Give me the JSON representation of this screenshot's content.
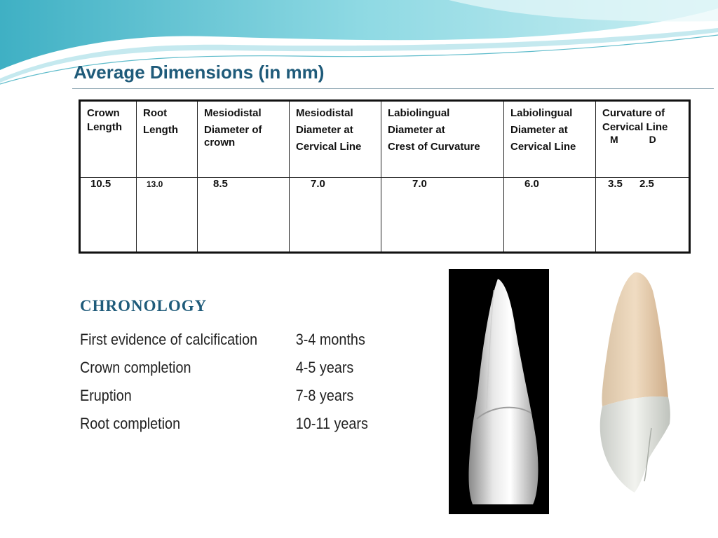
{
  "slide": {
    "title": "Average Dimensions (in mm)"
  },
  "table": {
    "headers": [
      {
        "lines": [
          "Crown",
          "Length"
        ]
      },
      {
        "lines": [
          "Root",
          "Length"
        ]
      },
      {
        "lines": [
          "Mesiodistal",
          "Diameter of",
          "crown"
        ]
      },
      {
        "lines": [
          "Mesiodistal",
          "Diameter at",
          "Cervical Line"
        ]
      },
      {
        "lines": [
          "Labiolingual",
          "Diameter at",
          "Crest of Curvature"
        ]
      },
      {
        "lines": [
          "Labiolingual",
          "Diameter at",
          "Cervical Line"
        ]
      },
      {
        "lines": [
          "Curvature of",
          "Cervical Line"
        ],
        "sub": [
          "M",
          "D"
        ]
      }
    ],
    "values": [
      "10.5",
      "13.0",
      "8.5",
      "7.0",
      "7.0",
      "6.0",
      "3.5",
      "2.5"
    ]
  },
  "chronology": {
    "title": "CHRONOLOGY",
    "rows": [
      {
        "label": "First evidence of calcification",
        "value": "3-4 months"
      },
      {
        "label": "Crown completion",
        "value": "4-5 years"
      },
      {
        "label": "Eruption",
        "value": "7-8 years"
      },
      {
        "label": "Root completion",
        "value": "10-11 years"
      }
    ]
  },
  "images": {
    "photo": "tooth-photo-black-background",
    "illustration": "tooth-illustration"
  },
  "colors": {
    "accent": "#1f5b7a",
    "wave": "#7fd0dc"
  }
}
